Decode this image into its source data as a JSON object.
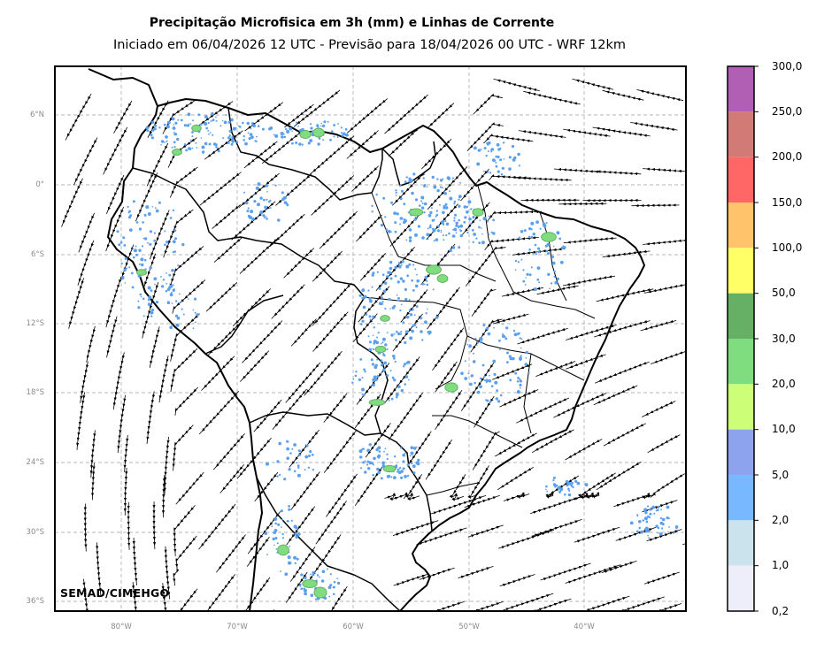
{
  "title": "Precipitação Microfisica em 3h (mm) e Linhas de Corrente",
  "subtitle": "Iniciado em 06/04/2026 12 UTC - Previsão para 18/04/2026 00 UTC - WRF 12km",
  "credit": "SEMAD/CIMEHGO",
  "lat_labels": [
    "6°N",
    "0°",
    "6°S",
    "12°S",
    "18°S",
    "24°S",
    "30°S",
    "36°S"
  ],
  "lon_labels": [
    "80°W",
    "70°W",
    "60°W",
    "50°W",
    "40°W"
  ],
  "colorbar": {
    "labels": [
      "300,0",
      "250,0",
      "200,0",
      "150,0",
      "100,0",
      "50,0",
      "30,0",
      "20,0",
      "10,0",
      "5,0",
      "2,0",
      "1,0",
      "0,2"
    ],
    "colors_top_to_bottom": [
      "#b05fb4",
      "#d17a76",
      "#ff6666",
      "#ffc46b",
      "#ffff66",
      "#66b066",
      "#7fdd7f",
      "#ccff77",
      "#8ea3ee",
      "#77b8ff",
      "#cbe3ec",
      "#eeeefa"
    ]
  },
  "colors": {
    "frame": "#000000",
    "grid": "#b4b4b4",
    "precip_light": "#5aa0ee",
    "precip_moderate": "#7fdd7f",
    "precip_heavy": "#66b066"
  }
}
